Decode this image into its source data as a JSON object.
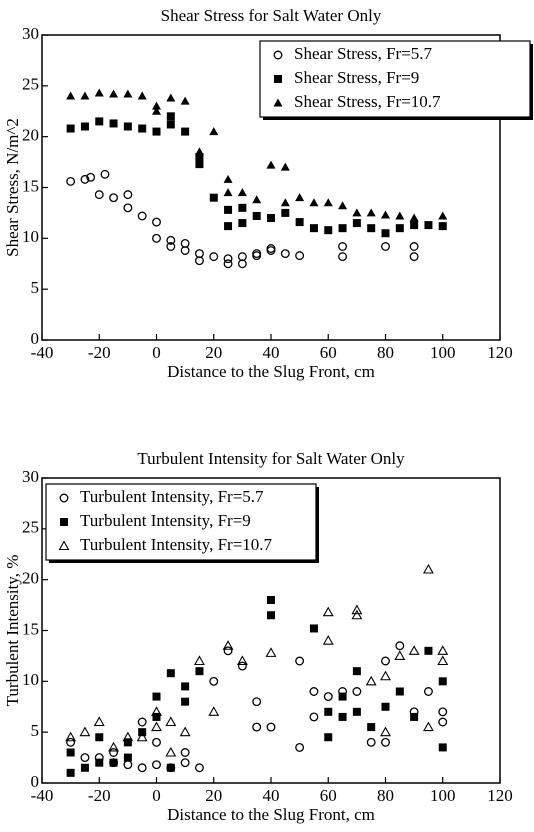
{
  "chart_data": [
    {
      "type": "scatter",
      "title": "Shear Stress for Salt Water Only",
      "xlabel": "Distance to the Slug Front, cm",
      "ylabel": "Shear Stress, N/m^2",
      "xlim": [
        -40,
        120
      ],
      "xticks": [
        -40,
        -20,
        0,
        20,
        40,
        60,
        80,
        100,
        120
      ],
      "ylim": [
        0,
        30
      ],
      "yticks": [
        0,
        5,
        10,
        15,
        20,
        25,
        30
      ],
      "legend": "upper right",
      "series": [
        {
          "name": "Shear Stress, Fr=5.7",
          "color": "#000000",
          "marker": "circle",
          "x": [
            -30,
            -25,
            -23,
            -20,
            -18,
            -15,
            -10,
            -10,
            -5,
            0,
            0,
            5,
            5,
            10,
            10,
            15,
            15,
            20,
            25,
            25,
            30,
            30,
            35,
            35,
            40,
            40,
            45,
            50,
            65,
            65,
            80,
            90,
            90
          ],
          "values": [
            15.6,
            15.8,
            16,
            14.3,
            16.3,
            14,
            14.3,
            13,
            12.2,
            11.6,
            10,
            9.8,
            9.2,
            9.5,
            8.8,
            8.5,
            7.8,
            8.2,
            8,
            7.5,
            8.2,
            7.5,
            8.5,
            8.3,
            9,
            8.8,
            8.5,
            8.3,
            9.2,
            8.2,
            9.2,
            9.2,
            8.2
          ]
        },
        {
          "name": "Shear Stress, Fr=9",
          "color": "#000000",
          "marker": "square",
          "x": [
            -30,
            -25,
            -20,
            -15,
            -10,
            -5,
            0,
            5,
            5,
            10,
            15,
            15,
            20,
            25,
            25,
            30,
            30,
            35,
            40,
            45,
            50,
            55,
            60,
            65,
            70,
            75,
            80,
            85,
            90,
            95,
            100
          ],
          "values": [
            20.8,
            21,
            21.5,
            21.3,
            21,
            20.8,
            20.5,
            22,
            21.2,
            20.5,
            18,
            17.3,
            14,
            12.8,
            11.2,
            13,
            11.5,
            12.2,
            12,
            12.5,
            11.6,
            11,
            10.8,
            11,
            11.5,
            11,
            10.5,
            11,
            11.3,
            11.3,
            11.2
          ]
        },
        {
          "name": "Shear Stress, Fr=10.7",
          "color": "#000000",
          "marker": "triangle",
          "x": [
            -30,
            -25,
            -20,
            -15,
            -10,
            -5,
            0,
            0,
            5,
            10,
            15,
            20,
            25,
            25,
            30,
            35,
            40,
            45,
            45,
            50,
            55,
            60,
            65,
            70,
            75,
            80,
            85,
            90,
            100
          ],
          "values": [
            24,
            24,
            24.3,
            24.2,
            24.2,
            24,
            23,
            22.5,
            23.8,
            23.5,
            18.5,
            20.5,
            15.8,
            14.5,
            14.5,
            13.8,
            17.2,
            17,
            13.5,
            14,
            13.5,
            13.5,
            13.2,
            12.5,
            12.5,
            12.3,
            12.2,
            12,
            12.2
          ]
        }
      ]
    },
    {
      "type": "scatter",
      "title": "Turbulent Intensity for Salt Water Only",
      "xlabel": "Distance to the Slug Front, cm",
      "ylabel": "Turbulent Intensity, %",
      "xlim": [
        -40,
        120
      ],
      "xticks": [
        -40,
        -20,
        0,
        20,
        40,
        60,
        80,
        100,
        120
      ],
      "ylim": [
        0,
        30
      ],
      "yticks": [
        0,
        5,
        10,
        15,
        20,
        25,
        30
      ],
      "legend": "upper left",
      "series": [
        {
          "name": "Turbulent Intensity, Fr=5.7",
          "color": "#000000",
          "marker": "circle",
          "x": [
            -30,
            -25,
            -20,
            -15,
            -15,
            -10,
            -5,
            -5,
            0,
            0,
            5,
            10,
            10,
            15,
            20,
            25,
            30,
            35,
            35,
            40,
            50,
            50,
            55,
            55,
            60,
            65,
            70,
            75,
            80,
            80,
            85,
            90,
            95,
            100,
            100
          ],
          "values": [
            4,
            2.5,
            2.5,
            3,
            2,
            1.8,
            6,
            1.5,
            4,
            1.8,
            1.5,
            3,
            2,
            1.5,
            10,
            13,
            11.5,
            5.5,
            8,
            5.5,
            3.5,
            12,
            6.5,
            9,
            8.5,
            9,
            9,
            4,
            12,
            4,
            13.5,
            7,
            9,
            7,
            6
          ]
        },
        {
          "name": "Turbulent Intensity, Fr=9",
          "color": "#000000",
          "marker": "square",
          "x": [
            -30,
            -30,
            -25,
            -20,
            -20,
            -15,
            -10,
            -10,
            -5,
            0,
            0,
            5,
            5,
            10,
            10,
            15,
            40,
            40,
            55,
            60,
            60,
            65,
            65,
            70,
            70,
            75,
            80,
            85,
            90,
            95,
            100,
            100
          ],
          "values": [
            3,
            1,
            1.5,
            4.5,
            2,
            2,
            4,
            2.5,
            5,
            8.5,
            6.5,
            10.8,
            1.5,
            9.5,
            8,
            11,
            18,
            16.5,
            15.2,
            7,
            4.5,
            6.5,
            8.5,
            11,
            7,
            5.5,
            7.5,
            9,
            6.5,
            13,
            10,
            3.5
          ]
        },
        {
          "name": "Turbulent Intensity, Fr=10.7",
          "color": "#000000",
          "marker": "triangle-open",
          "x": [
            -30,
            -25,
            -20,
            -15,
            -10,
            -5,
            0,
            0,
            5,
            5,
            10,
            15,
            20,
            25,
            30,
            40,
            60,
            60,
            70,
            70,
            75,
            80,
            80,
            85,
            90,
            95,
            95,
            100,
            100
          ],
          "values": [
            4.5,
            5,
            6,
            3.5,
            4.5,
            4.5,
            7,
            5.5,
            6,
            3,
            5,
            12,
            7,
            13.5,
            12,
            12.8,
            16.8,
            14,
            17,
            16.5,
            10,
            10.5,
            5,
            12.5,
            13,
            21,
            5.5,
            13,
            12
          ]
        }
      ]
    }
  ]
}
